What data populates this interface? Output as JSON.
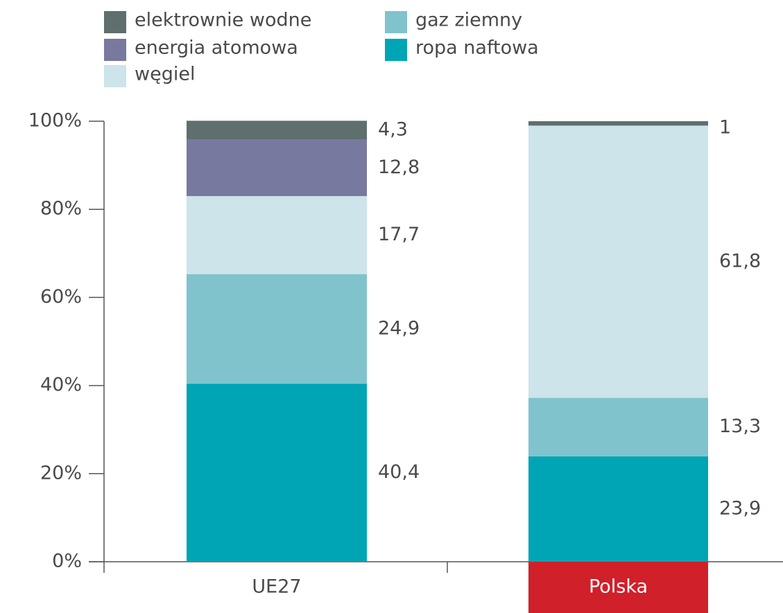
{
  "chart_data": {
    "type": "stacked_bar",
    "categories": [
      "UE27",
      "Polska"
    ],
    "series": [
      {
        "name": "ropa naftowa",
        "color": "#00a5b5",
        "values": [
          40.4,
          23.9
        ],
        "value_labels": [
          "40,4",
          "23,9"
        ]
      },
      {
        "name": "gaz ziemny",
        "color": "#80c3cd",
        "values": [
          24.9,
          13.3
        ],
        "value_labels": [
          "24,9",
          "13,3"
        ]
      },
      {
        "name": "węgiel",
        "color": "#cce4ea",
        "values": [
          17.7,
          61.8
        ],
        "value_labels": [
          "17,7",
          "61,8"
        ]
      },
      {
        "name": "energia atomowa",
        "color": "#78799f",
        "values": [
          12.8,
          null
        ],
        "value_labels": [
          "12,8",
          null
        ]
      },
      {
        "name": "elektrownie wodne",
        "color": "#5e6f6e",
        "values": [
          4.3,
          1
        ],
        "value_labels": [
          "4,3",
          "1"
        ]
      }
    ],
    "ylim": [
      0,
      100
    ],
    "yticks": [
      {
        "value": 0,
        "label": "0%"
      },
      {
        "value": 20,
        "label": "20%"
      },
      {
        "value": 40,
        "label": "40%"
      },
      {
        "value": 60,
        "label": "60%"
      },
      {
        "value": 80,
        "label": "80%"
      },
      {
        "value": 100,
        "label": "100%"
      }
    ],
    "highlight_category_color": "#d0202a"
  }
}
